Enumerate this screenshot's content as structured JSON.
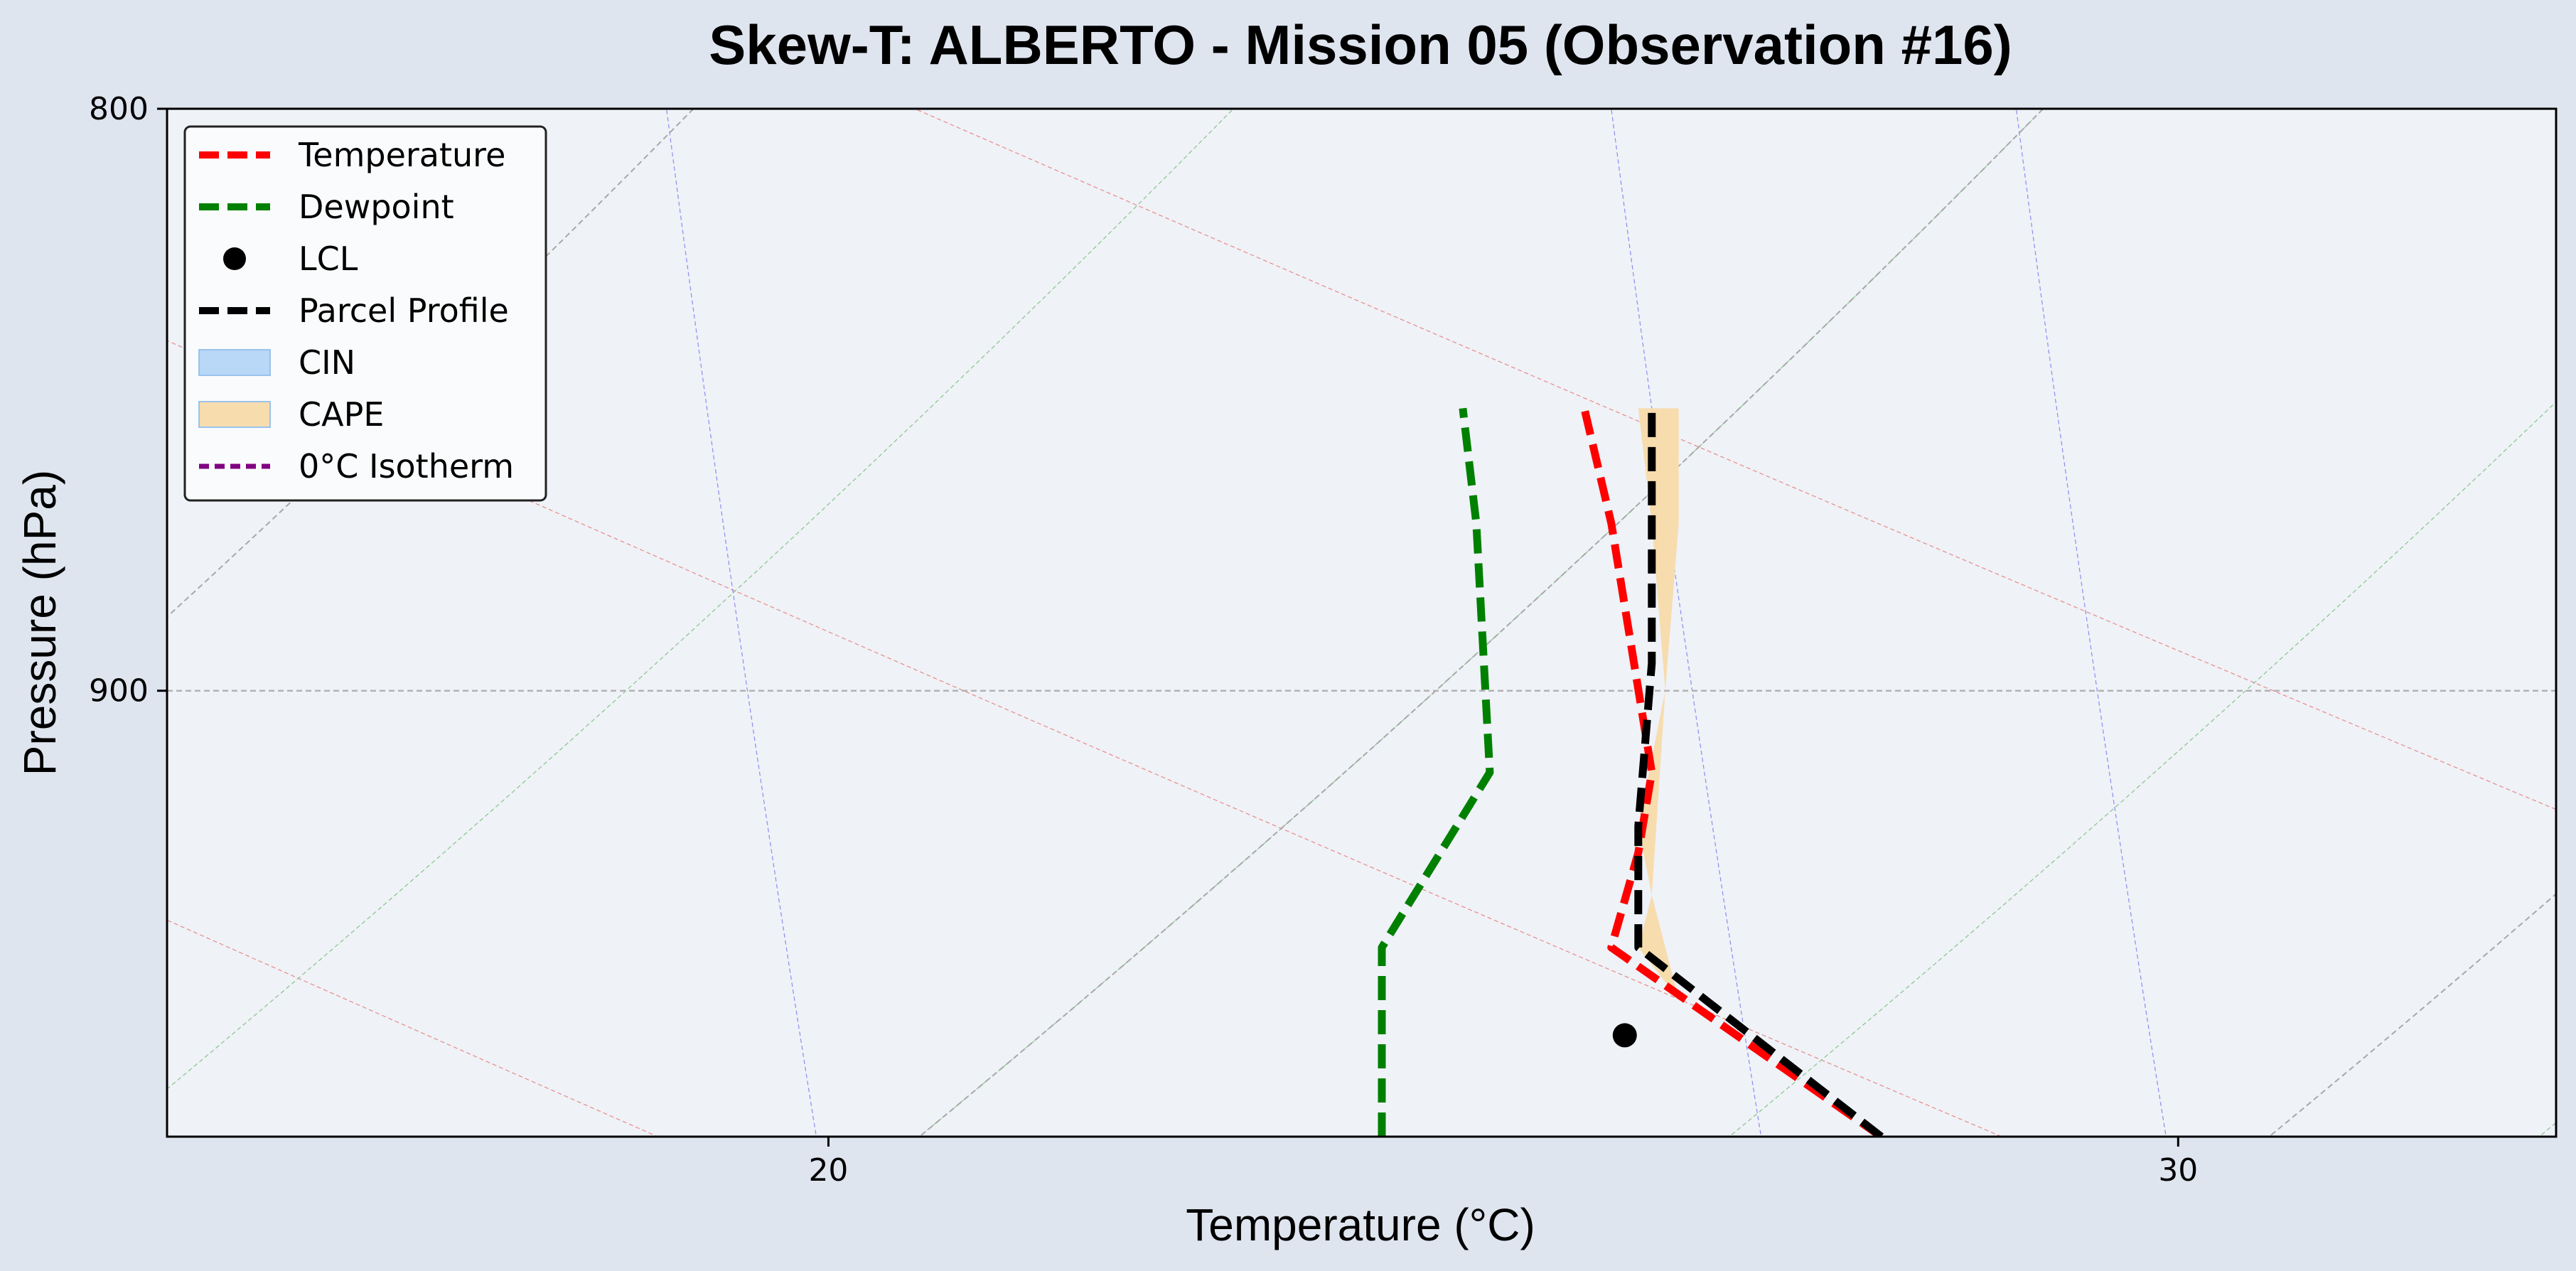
{
  "chart_data": {
    "type": "line",
    "title": "Skew-T: ALBERTO - Mission 05 (Observation #16)",
    "xlabel": "Temperature (°C)",
    "ylabel": "Pressure (hPa)",
    "xlim": [
      15.1,
      32.8
    ],
    "ylim": [
      985,
      800
    ],
    "y_scale": "log",
    "x_ticks": [
      20,
      30
    ],
    "y_ticks": [
      800,
      900
    ],
    "grid": "horizontal dashed at 900 hPa",
    "legend_position": "top-left",
    "colors": {
      "temperature": "#ff0000",
      "dewpoint": "#008000",
      "parcel": "#000000",
      "cin": "#b9d7f7",
      "cape": "#f7dcae",
      "isotherm_0c": "#800080",
      "plot_background": "#eff2f7",
      "figure_background": "#dfe5ef"
    },
    "legend": [
      {
        "label": "Temperature",
        "kind": "line",
        "color": "#ff0000",
        "dash": "long"
      },
      {
        "label": "Dewpoint",
        "kind": "line",
        "color": "#008000",
        "dash": "long"
      },
      {
        "label": "LCL",
        "kind": "marker",
        "color": "#000000"
      },
      {
        "label": "Parcel Profile",
        "kind": "line",
        "color": "#000000",
        "dash": "long"
      },
      {
        "label": "CIN",
        "kind": "patch",
        "color": "#b9d7f7"
      },
      {
        "label": "CAPE",
        "kind": "patch",
        "color": "#f7dcae"
      },
      {
        "label": "0°C Isotherm",
        "kind": "line",
        "color": "#800080",
        "dash": "short"
      }
    ],
    "series": [
      {
        "name": "Temperature",
        "points": [
          [
            27.8,
            985
          ],
          [
            25.8,
            948
          ],
          [
            26.0,
            930
          ],
          [
            26.1,
            915
          ],
          [
            25.8,
            870
          ],
          [
            25.6,
            850
          ]
        ]
      },
      {
        "name": "Dewpoint",
        "points": [
          [
            24.1,
            985
          ],
          [
            24.1,
            948
          ],
          [
            24.9,
            915
          ],
          [
            24.8,
            870
          ],
          [
            24.7,
            850
          ]
        ]
      },
      {
        "name": "Parcel Profile",
        "points": [
          [
            27.8,
            985
          ],
          [
            26.0,
            948
          ],
          [
            26.0,
            925
          ],
          [
            26.1,
            895
          ],
          [
            26.1,
            870
          ],
          [
            26.1,
            850
          ]
        ]
      }
    ],
    "lcl": {
      "x": 25.9,
      "y": 965
    },
    "cape_fill": [
      [
        26.3,
        850
      ],
      [
        26.0,
        850
      ],
      [
        26.1,
        870
      ],
      [
        26.2,
        900
      ],
      [
        26.0,
        925
      ],
      [
        26.1,
        938
      ],
      [
        26.0,
        948
      ],
      [
        26.3,
        958
      ],
      [
        26.1,
        938
      ],
      [
        26.2,
        900
      ],
      [
        26.3,
        870
      ]
    ],
    "background_lines": {
      "dry_adiabats_base_temps": [
        10,
        20,
        30,
        40
      ],
      "moist_adiabats_base_temps": [
        14,
        20,
        26,
        32
      ],
      "mixing_ratios_base_temps": [
        20,
        27,
        30
      ],
      "isotherm_temps": [
        10,
        20,
        30,
        40
      ]
    }
  }
}
